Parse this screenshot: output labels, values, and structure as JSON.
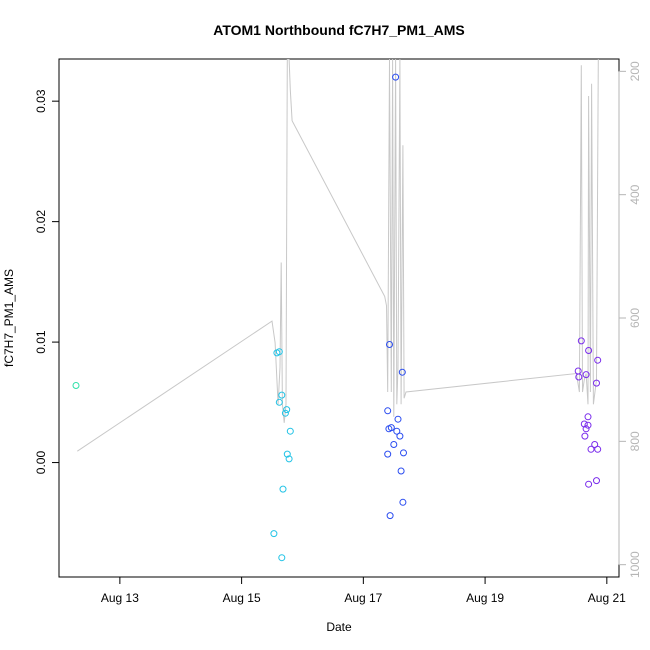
{
  "chart_data": {
    "type": "scatter",
    "title": "ATOM1 Northbound fC7H7_PM1_AMS",
    "xlabel": "Date",
    "ylabel": "fC7H7_PM1_AMS",
    "xlim": [
      12.0,
      21.2
    ],
    "ylim": [
      -0.0095,
      0.0335
    ],
    "x_ticks": [
      {
        "value": 13,
        "label": "Aug 13"
      },
      {
        "value": 15,
        "label": "Aug 15"
      },
      {
        "value": 17,
        "label": "Aug 17"
      },
      {
        "value": 19,
        "label": "Aug 19"
      },
      {
        "value": 21,
        "label": "Aug 21"
      }
    ],
    "y_ticks": [
      {
        "value": 0.0,
        "label": "0.00"
      },
      {
        "value": 0.01,
        "label": "0.01"
      },
      {
        "value": 0.02,
        "label": "0.02"
      },
      {
        "value": 0.03,
        "label": "0.03"
      }
    ],
    "y2_label": "",
    "y2_reversed": true,
    "y2lim": [
      1020,
      180
    ],
    "y2_ticks": [
      {
        "value": 200,
        "label": "200"
      },
      {
        "value": 400,
        "label": "400"
      },
      {
        "value": 600,
        "label": "600"
      },
      {
        "value": 800,
        "label": "800"
      },
      {
        "value": 1000,
        "label": "1000"
      }
    ],
    "colors": {
      "line": "#c8c8c8",
      "teal": "#2ee0a8",
      "cyan": "#22c3e6",
      "blue": "#2a4cf0",
      "violet": "#7a2cec",
      "axis": "#000000",
      "right_axis": "#b5b5b5"
    },
    "series": [
      {
        "color_key": "teal",
        "points": [
          [
            12.28,
            0.0064
          ]
        ]
      },
      {
        "color_key": "cyan",
        "points": [
          [
            15.58,
            0.0091
          ],
          [
            15.62,
            0.0092
          ],
          [
            15.62,
            0.005
          ],
          [
            15.66,
            0.0056
          ],
          [
            15.72,
            0.0041
          ],
          [
            15.74,
            0.0044
          ],
          [
            15.8,
            0.0026
          ],
          [
            15.75,
            0.0007
          ],
          [
            15.78,
            0.0003
          ],
          [
            15.68,
            -0.0022
          ],
          [
            15.53,
            -0.0059
          ],
          [
            15.66,
            -0.0079
          ]
        ]
      },
      {
        "color_key": "blue",
        "points": [
          [
            17.53,
            0.032
          ],
          [
            17.43,
            0.0098
          ],
          [
            17.64,
            0.0075
          ],
          [
            17.4,
            0.0043
          ],
          [
            17.57,
            0.0036
          ],
          [
            17.42,
            0.0028
          ],
          [
            17.46,
            0.0029
          ],
          [
            17.55,
            0.0026
          ],
          [
            17.6,
            0.0022
          ],
          [
            17.5,
            0.0015
          ],
          [
            17.66,
            0.0008
          ],
          [
            17.4,
            0.0007
          ],
          [
            17.62,
            -0.0007
          ],
          [
            17.65,
            -0.0033
          ],
          [
            17.44,
            -0.0044
          ]
        ]
      },
      {
        "color_key": "violet",
        "points": [
          [
            20.58,
            0.0101
          ],
          [
            20.7,
            0.0093
          ],
          [
            20.53,
            0.0076
          ],
          [
            20.54,
            0.0071
          ],
          [
            20.66,
            0.0073
          ],
          [
            20.85,
            0.0085
          ],
          [
            20.83,
            0.0066
          ],
          [
            20.69,
            0.0038
          ],
          [
            20.63,
            0.0032
          ],
          [
            20.69,
            0.0031
          ],
          [
            20.66,
            0.0028
          ],
          [
            20.64,
            0.0022
          ],
          [
            20.8,
            0.0015
          ],
          [
            20.74,
            0.0011
          ],
          [
            20.85,
            0.0011
          ],
          [
            20.7,
            -0.0018
          ],
          [
            20.83,
            -0.0015
          ]
        ]
      }
    ],
    "right_axis_line": [
      [
        12.3,
        816
      ],
      [
        15.5,
        605
      ],
      [
        15.55,
        640
      ],
      [
        15.6,
        740
      ],
      [
        15.63,
        680
      ],
      [
        15.65,
        510
      ],
      [
        15.67,
        740
      ],
      [
        15.7,
        770
      ],
      [
        15.73,
        740
      ],
      [
        15.75,
        180
      ],
      [
        15.78,
        180
      ],
      [
        15.8,
        230
      ],
      [
        15.83,
        280
      ],
      [
        17.35,
        565
      ],
      [
        17.38,
        580
      ],
      [
        17.4,
        720
      ],
      [
        17.43,
        180
      ],
      [
        17.46,
        720
      ],
      [
        17.48,
        180
      ],
      [
        17.5,
        760
      ],
      [
        17.53,
        180
      ],
      [
        17.55,
        740
      ],
      [
        17.57,
        680
      ],
      [
        17.6,
        180
      ],
      [
        17.62,
        740
      ],
      [
        17.65,
        320
      ],
      [
        17.67,
        730
      ],
      [
        17.7,
        720
      ],
      [
        20.5,
        690
      ],
      [
        20.55,
        720
      ],
      [
        20.58,
        190
      ],
      [
        20.6,
        720
      ],
      [
        20.63,
        700
      ],
      [
        20.66,
        690
      ],
      [
        20.69,
        740
      ],
      [
        20.7,
        240
      ],
      [
        20.73,
        720
      ],
      [
        20.75,
        220
      ],
      [
        20.78,
        740
      ],
      [
        20.83,
        700
      ],
      [
        20.86,
        180
      ]
    ]
  }
}
